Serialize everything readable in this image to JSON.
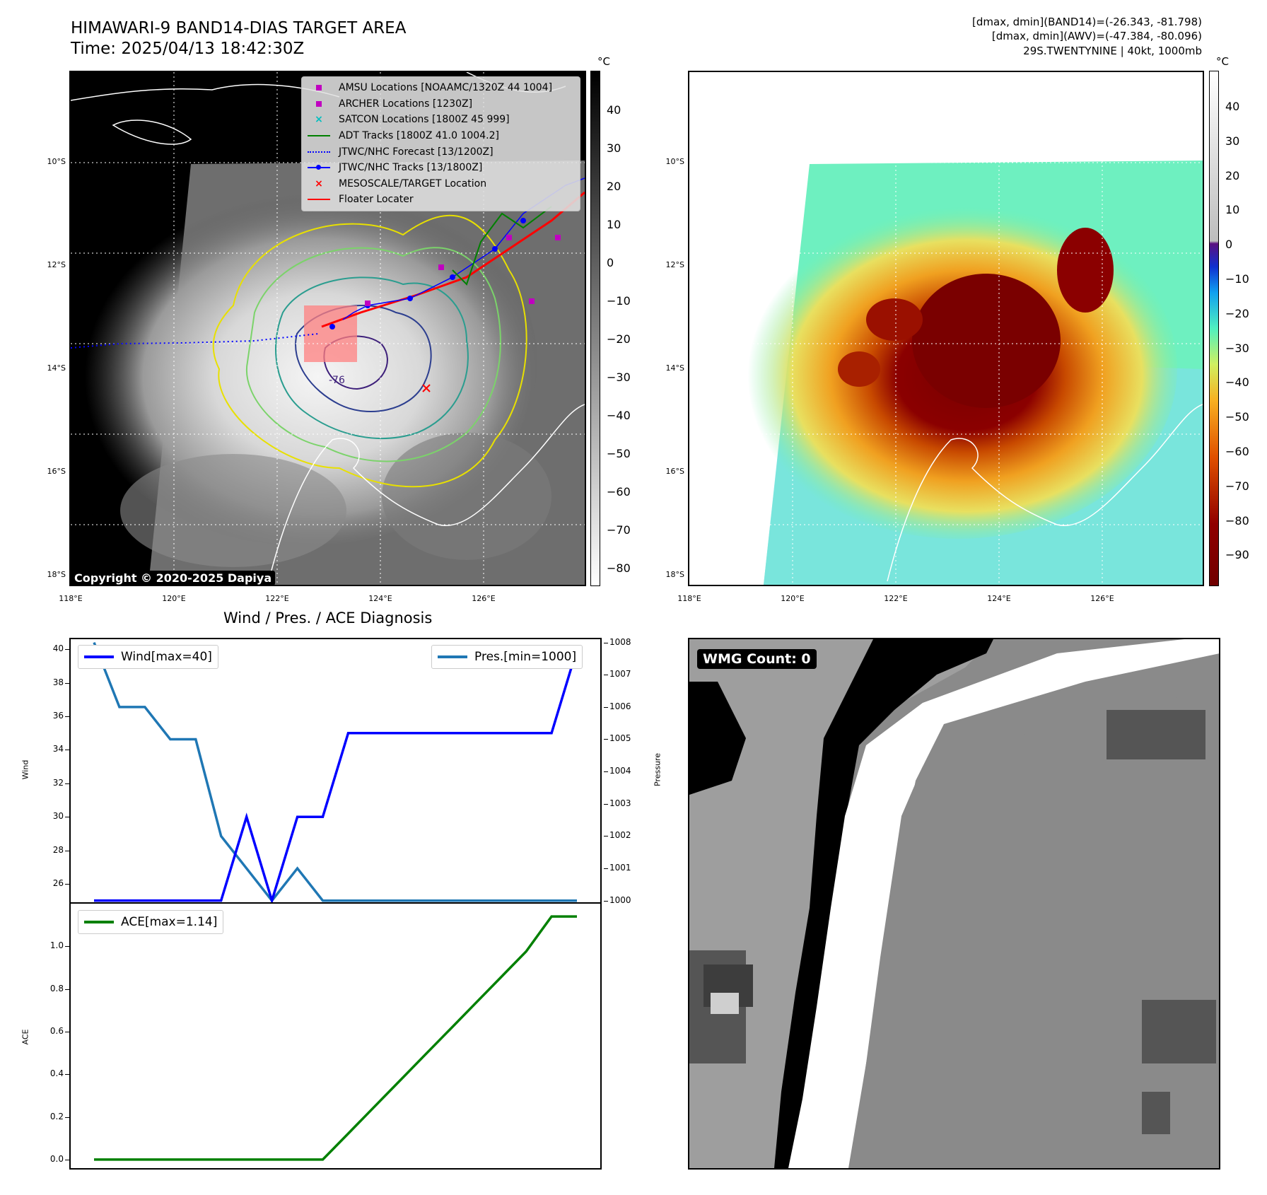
{
  "header": {
    "title_line1": "HIMAWARI-9 BAND14-DIAS TARGET AREA",
    "title_line2": "Time: 2025/04/13 18:42:30Z",
    "info_line1": "[dmax, dmin](BAND14)=(-26.343, -81.798)",
    "info_line2": "[dmax, dmin](AWV)=(-47.384, -80.096)",
    "info_line3": "29S.TWENTYNINE | 40kt, 1000mb"
  },
  "map": {
    "lat_labels": [
      "10°S",
      "12°S",
      "14°S",
      "16°S",
      "18°S"
    ],
    "lon_labels": [
      "118°E",
      "120°E",
      "122°E",
      "124°E",
      "126°E"
    ],
    "copyright": "Copyright © 2020-2025 Dapiya",
    "contour_label": "-76",
    "legend": [
      {
        "label": "AMSU Locations [NOAAMC/1320Z 44 1004]",
        "symbol": "square",
        "color": "#c000c0"
      },
      {
        "label": "ARCHER Locations [1230Z]",
        "symbol": "square",
        "color": "#c000c0"
      },
      {
        "label": "SATCON Locations [1800Z 45 999]",
        "symbol": "x",
        "color": "#00bfbf"
      },
      {
        "label": "ADT Tracks [1800Z 41.0 1004.2]",
        "symbol": "line",
        "color": "#008000"
      },
      {
        "label": "JTWC/NHC Forecast [13/1200Z]",
        "symbol": "dotted",
        "color": "#0000ff"
      },
      {
        "label": "JTWC/NHC Tracks [13/1800Z]",
        "symbol": "line-dot",
        "color": "#0000ff"
      },
      {
        "label": "MESOSCALE/TARGET Location",
        "symbol": "x",
        "color": "#ff0000"
      },
      {
        "label": "Floater Locater",
        "symbol": "line",
        "color": "#ff0000"
      }
    ]
  },
  "colorbar_gray": {
    "unit": "°C",
    "ticks": [
      "40",
      "30",
      "20",
      "10",
      "0",
      "−10",
      "−20",
      "−30",
      "−40",
      "−50",
      "−60",
      "−70",
      "−80"
    ]
  },
  "colorbar_color": {
    "unit": "°C",
    "ticks": [
      "40",
      "30",
      "20",
      "10",
      "0",
      "−10",
      "−20",
      "−30",
      "−40",
      "−50",
      "−60",
      "−70",
      "−80",
      "−90"
    ]
  },
  "colors": {
    "wind": "#0000ff",
    "pressure": "#1f77b4",
    "ace": "#008000"
  },
  "chart_data": [
    {
      "type": "line",
      "title": "Wind / Pres. / ACE Diagnosis",
      "ylabel": "Wind",
      "y2label": "Pressure",
      "ylim": [
        24.9,
        40.6
      ],
      "y2lim": [
        999.95,
        1008.1
      ],
      "yticks": [
        "40",
        "38",
        "36",
        "34",
        "32",
        "30",
        "28",
        "26"
      ],
      "y2ticks": [
        "1008",
        "1007",
        "1006",
        "1005",
        "1004",
        "1003",
        "1002",
        "1001",
        "1000"
      ],
      "x": [
        0,
        1,
        2,
        3,
        4,
        5,
        6,
        7,
        8,
        9,
        10,
        11,
        12,
        13,
        14,
        15,
        16,
        17,
        18,
        19
      ],
      "series": [
        {
          "name": "Wind[max=40]",
          "axis": "left",
          "values": [
            25,
            25,
            25,
            25,
            25,
            25,
            30,
            25,
            30,
            30,
            35,
            35,
            35,
            35,
            35,
            35,
            35,
            35,
            35,
            40
          ]
        },
        {
          "name": "Pres.[min=1000]",
          "axis": "right",
          "values": [
            1008,
            1006,
            1006,
            1005,
            1005,
            1002,
            1001,
            1000,
            1001,
            1000,
            1000,
            1000,
            1000,
            1000,
            1000,
            1000,
            1000,
            1000,
            1000,
            1000
          ]
        }
      ]
    },
    {
      "type": "line",
      "ylabel": "ACE",
      "ylim": [
        -0.04,
        1.2
      ],
      "yticks": [
        "1.0",
        "0.8",
        "0.6",
        "0.4",
        "0.2",
        "0.0"
      ],
      "x": [
        0,
        1,
        2,
        3,
        4,
        5,
        6,
        7,
        8,
        9,
        10,
        11,
        12,
        13,
        14,
        15,
        16,
        17,
        18,
        19
      ],
      "series": [
        {
          "name": "ACE[max=1.14]",
          "values": [
            0,
            0,
            0,
            0,
            0,
            0,
            0,
            0,
            0,
            0,
            0.122,
            0.244,
            0.366,
            0.488,
            0.61,
            0.732,
            0.854,
            0.976,
            1.14,
            1.14
          ]
        }
      ]
    }
  ],
  "wmg": {
    "label": "WMG Count: 0"
  }
}
